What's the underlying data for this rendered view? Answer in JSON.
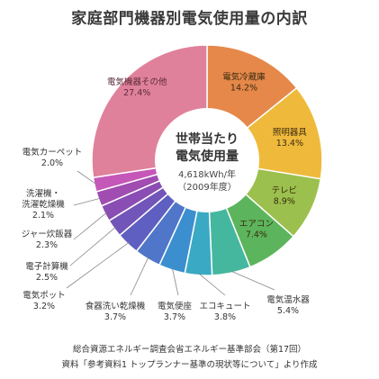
{
  "chart_data": {
    "type": "pie",
    "title": "家庭部門機器別電気使用量の内訳",
    "center": {
      "line1": "世帯当たり",
      "line2": "電気使用量",
      "value": "4,618kWh/年",
      "year": "（2009年度）"
    },
    "slices": [
      {
        "label": "電気冷蔵庫",
        "value": 14.2,
        "display": "14.2%",
        "color": "#e5884a"
      },
      {
        "label": "照明器具",
        "value": 13.4,
        "display": "13.4%",
        "color": "#efba3c"
      },
      {
        "label": "テレビ",
        "value": 8.9,
        "display": "8.9%",
        "color": "#9cc04d"
      },
      {
        "label": "エアコン",
        "value": 7.4,
        "display": "7.4%",
        "color": "#5cb55c"
      },
      {
        "label": "電気温水器",
        "value": 5.4,
        "display": "5.4%",
        "color": "#45b79f"
      },
      {
        "label": "エコキュート",
        "value": 3.8,
        "display": "3.8%",
        "color": "#3aa9c4"
      },
      {
        "label": "電気便座",
        "value": 3.7,
        "display": "3.7%",
        "color": "#3c8fcf"
      },
      {
        "label": "食器洗い乾燥機",
        "value": 3.7,
        "display": "3.7%",
        "color": "#4f76c9"
      },
      {
        "label": "電気ポット",
        "value": 3.2,
        "display": "3.2%",
        "color": "#5e5fc0"
      },
      {
        "label": "電子計算機",
        "value": 2.5,
        "display": "2.5%",
        "color": "#7255b8"
      },
      {
        "label": "ジャー炊飯器",
        "value": 2.3,
        "display": "2.3%",
        "color": "#8a4db3"
      },
      {
        "label": "洗濯機・\n洗濯乾燥機",
        "value": 2.1,
        "display": "2.1%",
        "color": "#a04cb0"
      },
      {
        "label": "電気カーペット",
        "value": 2.0,
        "display": "2.0%",
        "color": "#c557b8"
      },
      {
        "label": "電気機器その他",
        "value": 27.4,
        "display": "27.4%",
        "color": "#e0819c"
      }
    ]
  },
  "source": {
    "line1": "総合資源エネルギー調査会省エネルギー基準部会（第17回）",
    "line2": "資料「参考資料1 トップランナー基準の現状等について」より作成"
  }
}
